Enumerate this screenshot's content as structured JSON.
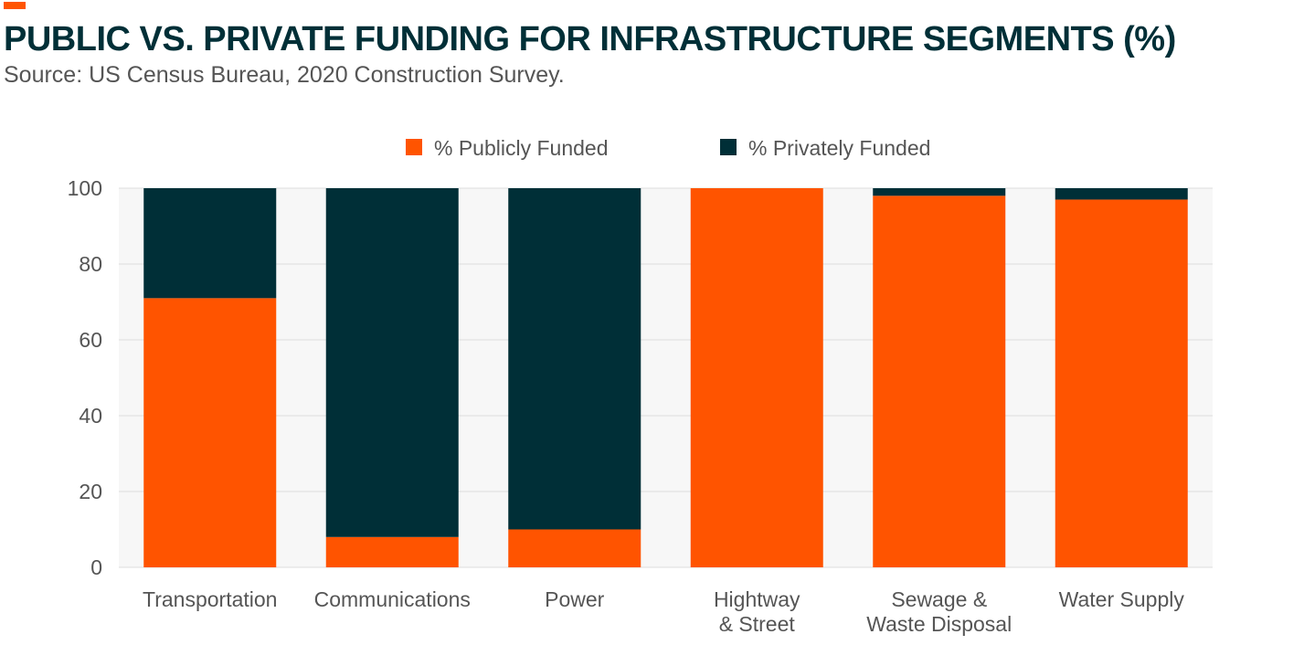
{
  "header": {
    "title": "PUBLIC VS. PRIVATE FUNDING FOR INFRASTRUCTURE SEGMENTS (%)",
    "subtitle": "Source: US Census Bureau, 2020 Construction Survey."
  },
  "colors": {
    "accent": "#ff5400",
    "public": "#ff5400",
    "private": "#002f37",
    "title": "#002f37",
    "text": "#555555",
    "plot_bg": "#f7f7f7",
    "grid": "#dddddd"
  },
  "chart_data": {
    "type": "bar",
    "stacked": true,
    "title": "PUBLIC VS. PRIVATE FUNDING FOR INFRASTRUCTURE SEGMENTS (%)",
    "subtitle": "Source: US Census Bureau, 2020 Construction Survey.",
    "categories": [
      [
        "Transportation"
      ],
      [
        "Communications"
      ],
      [
        "Power"
      ],
      [
        "Hightway",
        "& Street"
      ],
      [
        "Sewage &",
        "Waste Disposal"
      ],
      [
        "Water Supply"
      ]
    ],
    "series": [
      {
        "name": "% Publicly Funded",
        "color": "#ff5400",
        "values": [
          71,
          8,
          10,
          100,
          98,
          97
        ]
      },
      {
        "name": "% Privately Funded",
        "color": "#002f37",
        "values": [
          29,
          92,
          90,
          0,
          2,
          3
        ]
      }
    ],
    "xlabel": "",
    "ylabel": "",
    "ylim": [
      0,
      100
    ],
    "yticks": [
      0,
      20,
      40,
      60,
      80,
      100
    ],
    "grid": true,
    "legend": "top-center"
  }
}
